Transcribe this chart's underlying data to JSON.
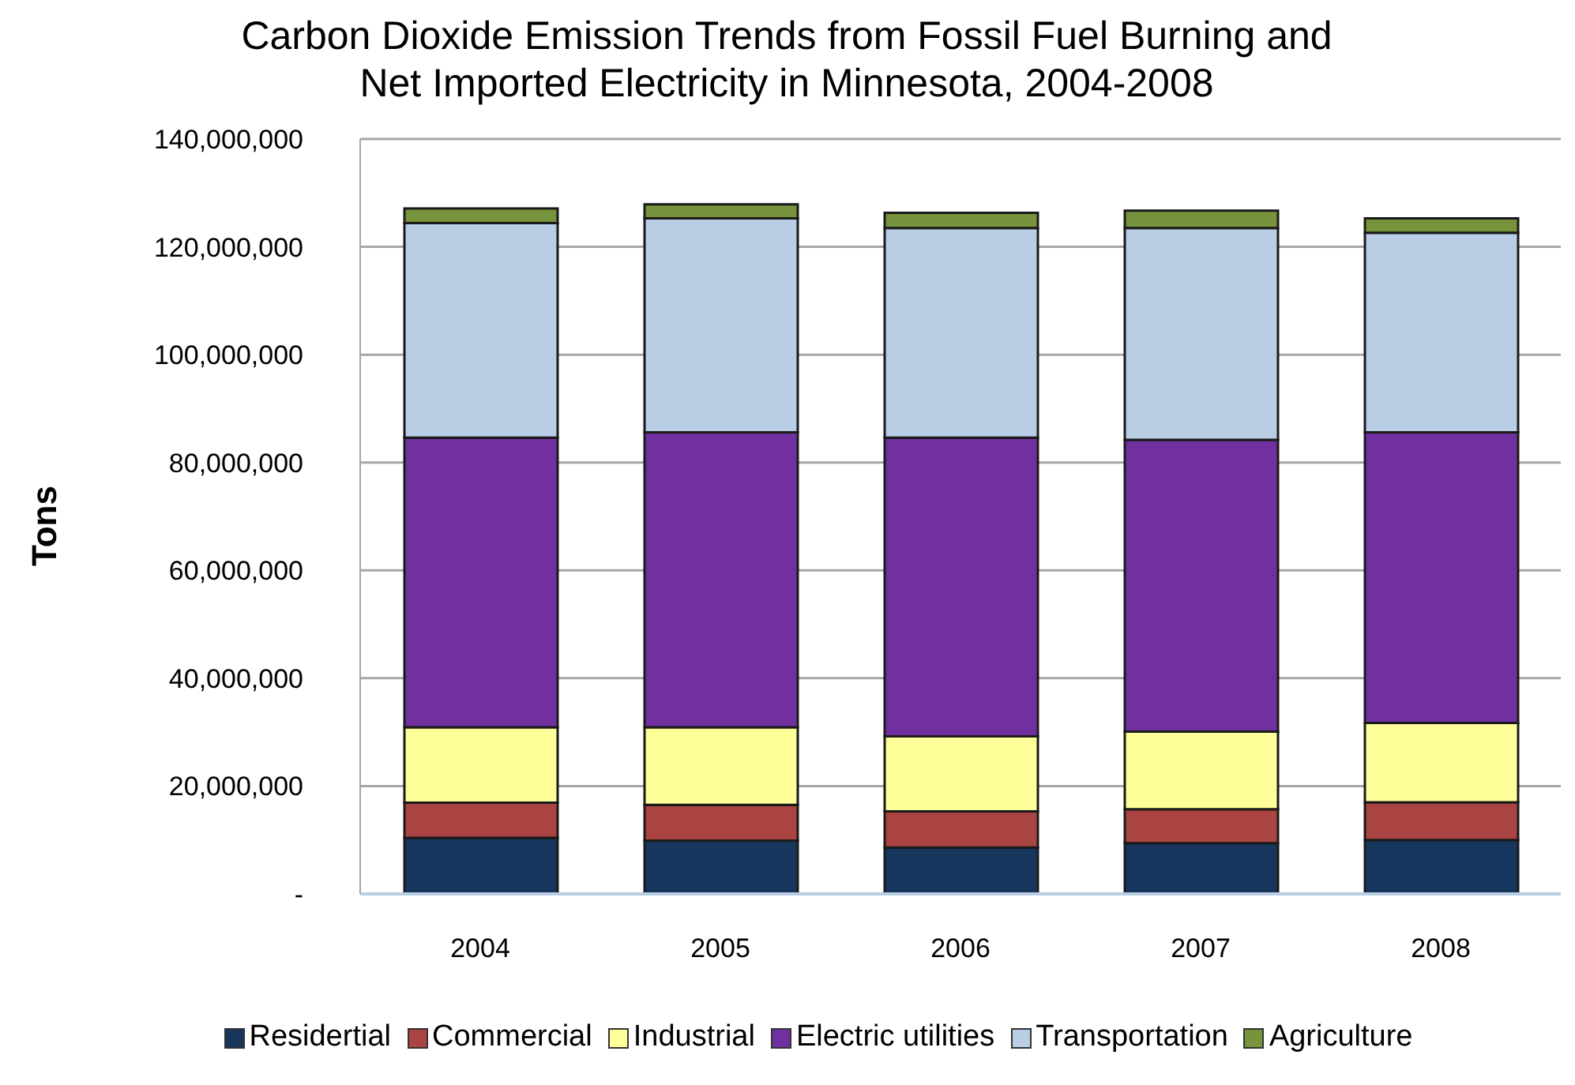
{
  "chart_data": {
    "type": "bar",
    "title": "Carbon Dioxide Emission Trends from Fossil Fuel Burning and Net Imported Electricity in Minnesota, 2004-2008",
    "ylabel": "Tons",
    "categories": [
      "2004",
      "2005",
      "2006",
      "2007",
      "2008"
    ],
    "stacked": true,
    "series": [
      {
        "name": "Residertial",
        "color": "#17365d",
        "values": [
          10400000,
          9900000,
          8600000,
          9400000,
          10000000
        ]
      },
      {
        "name": "Commercial",
        "color": "#a94442",
        "values": [
          6500000,
          6600000,
          6700000,
          6300000,
          7000000
        ]
      },
      {
        "name": "Industrial",
        "color": "#ffff99",
        "values": [
          14000000,
          14400000,
          13900000,
          14400000,
          14700000
        ]
      },
      {
        "name": "Electric utilities",
        "color": "#7030a0",
        "values": [
          53700000,
          54700000,
          55400000,
          54100000,
          53900000
        ]
      },
      {
        "name": "Transportation",
        "color": "#b9cde5",
        "values": [
          39800000,
          39700000,
          38900000,
          39300000,
          37000000
        ]
      },
      {
        "name": "Agriculture",
        "color": "#77933c",
        "values": [
          2700000,
          2600000,
          2800000,
          3200000,
          2700000
        ]
      }
    ],
    "ylim": [
      0,
      140000000
    ],
    "yticks": [
      {
        "value": 0,
        "label": "-"
      },
      {
        "value": 20000000,
        "label": "20,000,000"
      },
      {
        "value": 40000000,
        "label": "40,000,000"
      },
      {
        "value": 60000000,
        "label": "60,000,000"
      },
      {
        "value": 80000000,
        "label": "80,000,000"
      },
      {
        "value": 100000000,
        "label": "100,000,000"
      },
      {
        "value": 120000000,
        "label": "120,000,000"
      },
      {
        "value": 140000000,
        "label": "140,000,000"
      }
    ],
    "grid": "y",
    "legend": "bottom"
  }
}
